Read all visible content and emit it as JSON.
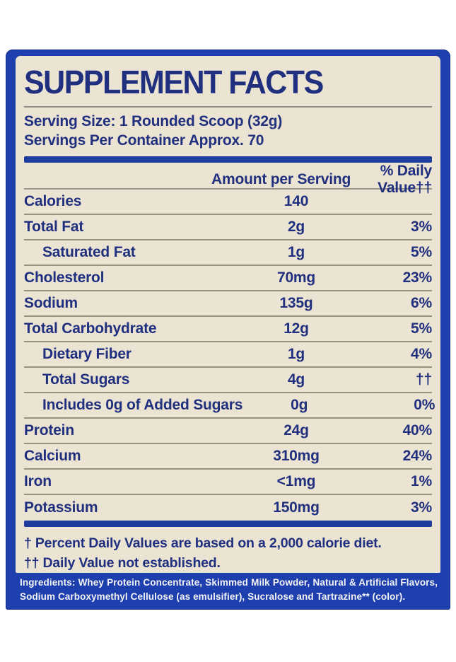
{
  "title": "SUPPLEMENT FACTS",
  "serving": {
    "size": "Serving Size: 1 Rounded Scoop (32g)",
    "per_container": "Servings Per Container Approx. 70"
  },
  "table": {
    "headers": {
      "amount": "Amount per Serving",
      "daily_value": "% Daily Value††"
    },
    "rows": [
      {
        "label": "Calories",
        "amount": "140",
        "dv": "",
        "indent": false
      },
      {
        "label": "Total Fat",
        "amount": "2g",
        "dv": "3%",
        "indent": false
      },
      {
        "label": "Saturated Fat",
        "amount": "1g",
        "dv": "5%",
        "indent": true
      },
      {
        "label": "Cholesterol",
        "amount": "70mg",
        "dv": "23%",
        "indent": false
      },
      {
        "label": "Sodium",
        "amount": "135g",
        "dv": "6%",
        "indent": false
      },
      {
        "label": "Total Carbohydrate",
        "amount": "12g",
        "dv": "5%",
        "indent": false
      },
      {
        "label": "Dietary Fiber",
        "amount": "1g",
        "dv": "4%",
        "indent": true
      },
      {
        "label": "Total Sugars",
        "amount": "4g",
        "dv": "††",
        "indent": true
      },
      {
        "label": "Includes 0g of Added Sugars",
        "amount": "0g",
        "dv": "0%",
        "indent": true
      },
      {
        "label": "Protein",
        "amount": "24g",
        "dv": "40%",
        "indent": false
      },
      {
        "label": "Calcium",
        "amount": "310mg",
        "dv": "24%",
        "indent": false
      },
      {
        "label": "Iron",
        "amount": "<1mg",
        "dv": "1%",
        "indent": false
      },
      {
        "label": "Potassium",
        "amount": "150mg",
        "dv": "3%",
        "indent": false
      }
    ]
  },
  "footnotes": [
    "† Percent Daily Values are based on a 2,000 calorie diet.",
    "†† Daily Value not established."
  ],
  "ingredients": "Ingredients: Whey Protein Concentrate, Skimmed Milk Powder, Natural & Artificial Flavors, Sodium Carboxymethyl Cellulose (as emulsifier), Sucralose and Tartrazine** (color).",
  "colors": {
    "label_blue": "#1e3fae",
    "panel_cream": "#ebe4d3",
    "text_navy": "#20307f",
    "divider_gray": "#93917f",
    "section_bar_blue": "#1d3c9e",
    "ingredients_text": "#f4f4f8"
  }
}
